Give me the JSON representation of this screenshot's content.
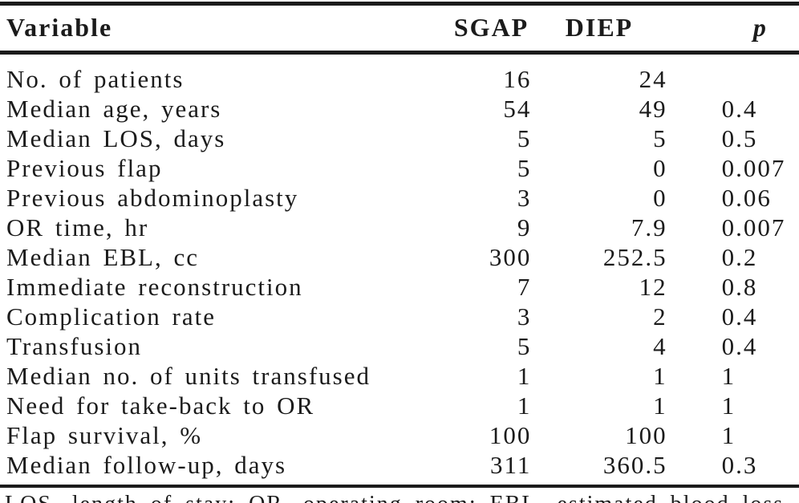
{
  "table": {
    "header": {
      "variable": "Variable",
      "sgap": "SGAP",
      "diep": "DIEP",
      "p": "p"
    },
    "rows": [
      {
        "variable": "No. of patients",
        "sgap": "16",
        "diep": "24",
        "p": ""
      },
      {
        "variable": "Median age, years",
        "sgap": "54",
        "diep": "49",
        "p": "0.4"
      },
      {
        "variable": "Median LOS, days",
        "sgap": "5",
        "diep": "5",
        "p": "0.5"
      },
      {
        "variable": "Previous flap",
        "sgap": "5",
        "diep": "0",
        "p": "0.007"
      },
      {
        "variable": "Previous abdominoplasty",
        "sgap": "3",
        "diep": "0",
        "p": "0.06"
      },
      {
        "variable": "OR time, hr",
        "sgap": "9",
        "diep": "7.9",
        "p": "0.007"
      },
      {
        "variable": "Median EBL, cc",
        "sgap": "300",
        "diep": "252.5",
        "p": "0.2"
      },
      {
        "variable": "Immediate reconstruction",
        "sgap": "7",
        "diep": "12",
        "p": "0.8"
      },
      {
        "variable": "Complication rate",
        "sgap": "3",
        "diep": "2",
        "p": "0.4"
      },
      {
        "variable": "Transfusion",
        "sgap": "5",
        "diep": "4",
        "p": "0.4"
      },
      {
        "variable": "Median no. of units transfused",
        "sgap": "1",
        "diep": "1",
        "p": "1"
      },
      {
        "variable": "Need for take-back to OR",
        "sgap": "1",
        "diep": "1",
        "p": "1"
      },
      {
        "variable": "Flap survival, %",
        "sgap": "100",
        "diep": "100",
        "p": "1"
      },
      {
        "variable": "Median follow-up, days",
        "sgap": "311",
        "diep": "360.5",
        "p": "0.3"
      }
    ],
    "footnote": "LOS, length of stay; OR, operating room; EBL, estimated blood loss"
  }
}
